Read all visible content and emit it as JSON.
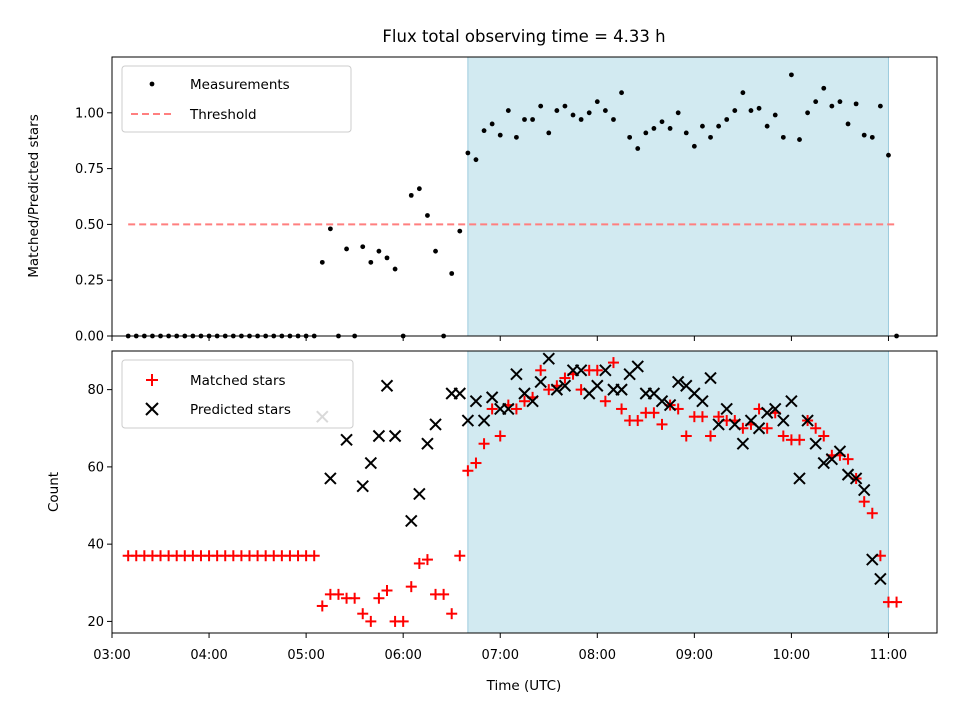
{
  "chart_data": [
    {
      "type": "scatter",
      "title": "Flux total observing time = 4.33 h",
      "xlabel": "",
      "ylabel": "Matched/Predicted stars",
      "xlim": [
        "03:00",
        "11:30"
      ],
      "ylim": [
        0,
        1.25
      ],
      "yticks": [
        "0.00",
        "0.25",
        "0.50",
        "0.75",
        "1.00"
      ],
      "shaded_region": {
        "start": "06:40",
        "end": "11:00",
        "color": "#add8e6"
      },
      "legend_position": "top-left",
      "series": [
        {
          "name": "Measurements",
          "marker": "dot",
          "color": "#000000",
          "x": [
            "03:10",
            "03:15",
            "03:20",
            "03:25",
            "03:30",
            "03:35",
            "03:40",
            "03:45",
            "03:50",
            "03:55",
            "04:00",
            "04:05",
            "04:10",
            "04:15",
            "04:20",
            "04:25",
            "04:30",
            "04:35",
            "04:40",
            "04:45",
            "04:50",
            "04:55",
            "05:00",
            "05:05",
            "05:10",
            "05:15",
            "05:20",
            "05:25",
            "05:30",
            "05:35",
            "05:40",
            "05:45",
            "05:50",
            "05:55",
            "06:00",
            "06:05",
            "06:10",
            "06:15",
            "06:20",
            "06:25",
            "06:30",
            "06:35",
            "06:40",
            "06:45",
            "06:50",
            "06:55",
            "07:00",
            "07:05",
            "07:10",
            "07:15",
            "07:20",
            "07:25",
            "07:30",
            "07:35",
            "07:40",
            "07:45",
            "07:50",
            "07:55",
            "08:00",
            "08:05",
            "08:10",
            "08:15",
            "08:20",
            "08:25",
            "08:30",
            "08:35",
            "08:40",
            "08:45",
            "08:50",
            "08:55",
            "09:00",
            "09:05",
            "09:10",
            "09:15",
            "09:20",
            "09:25",
            "09:30",
            "09:35",
            "09:40",
            "09:45",
            "09:50",
            "09:55",
            "10:00",
            "10:05",
            "10:10",
            "10:15",
            "10:20",
            "10:25",
            "10:30",
            "10:35",
            "10:40",
            "10:45",
            "10:50",
            "10:55",
            "11:00",
            "11:05"
          ],
          "values": [
            0,
            0,
            0,
            0,
            0,
            0,
            0,
            0,
            0,
            0,
            0,
            0,
            0,
            0,
            0,
            0,
            0,
            0,
            0,
            0,
            0,
            0,
            0,
            0,
            0.33,
            0.48,
            0,
            0.39,
            0,
            0.4,
            0.33,
            0.38,
            0.35,
            0.3,
            0,
            0.63,
            0.66,
            0.54,
            0.38,
            0,
            0.28,
            0.47,
            0.82,
            0.79,
            0.92,
            0.95,
            0.9,
            1.01,
            0.89,
            0.97,
            0.97,
            1.03,
            0.91,
            1.01,
            1.03,
            0.99,
            0.97,
            1.0,
            1.05,
            1.01,
            0.97,
            1.09,
            0.89,
            0.84,
            0.91,
            0.93,
            0.96,
            0.93,
            1.0,
            0.91,
            0.85,
            0.94,
            0.89,
            0.94,
            0.97,
            1.01,
            1.09,
            1.01,
            1.02,
            0.94,
            0.99,
            0.89,
            1.17,
            0.88,
            1.0,
            1.05,
            1.11,
            1.03,
            1.05,
            0.95,
            1.04,
            0.9,
            0.89,
            1.03,
            0.81,
            0
          ]
        },
        {
          "name": "Threshold",
          "style": "dashed",
          "color": "#ff7f7f",
          "x": [
            "03:10",
            "11:05"
          ],
          "values": [
            0.5,
            0.5
          ]
        }
      ]
    },
    {
      "type": "scatter",
      "title": "",
      "xlabel": "Time (UTC)",
      "ylabel": "Count",
      "xlim": [
        "03:00",
        "11:30"
      ],
      "ylim": [
        17,
        90
      ],
      "yticks": [
        "20",
        "40",
        "60",
        "80"
      ],
      "xticks": [
        "03:00",
        "04:00",
        "05:00",
        "06:00",
        "07:00",
        "08:00",
        "09:00",
        "10:00",
        "11:00"
      ],
      "shaded_region": {
        "start": "06:40",
        "end": "11:00",
        "color": "#add8e6"
      },
      "legend_position": "top-left",
      "series": [
        {
          "name": "Matched stars",
          "marker": "plus",
          "color": "#ff0000",
          "x": [
            "03:10",
            "03:15",
            "03:20",
            "03:25",
            "03:30",
            "03:35",
            "03:40",
            "03:45",
            "03:50",
            "03:55",
            "04:00",
            "04:05",
            "04:10",
            "04:15",
            "04:20",
            "04:25",
            "04:30",
            "04:35",
            "04:40",
            "04:45",
            "04:50",
            "04:55",
            "05:00",
            "05:05",
            "05:10",
            "05:15",
            "05:20",
            "05:25",
            "05:30",
            "05:35",
            "05:40",
            "05:45",
            "05:50",
            "05:55",
            "06:00",
            "06:05",
            "06:10",
            "06:15",
            "06:20",
            "06:25",
            "06:30",
            "06:35",
            "06:40",
            "06:45",
            "06:50",
            "06:55",
            "07:00",
            "07:05",
            "07:10",
            "07:15",
            "07:20",
            "07:25",
            "07:30",
            "07:35",
            "07:40",
            "07:45",
            "07:50",
            "07:55",
            "08:00",
            "08:05",
            "08:10",
            "08:15",
            "08:20",
            "08:25",
            "08:30",
            "08:35",
            "08:40",
            "08:45",
            "08:50",
            "08:55",
            "09:00",
            "09:05",
            "09:10",
            "09:15",
            "09:20",
            "09:25",
            "09:30",
            "09:35",
            "09:40",
            "09:45",
            "09:50",
            "09:55",
            "10:00",
            "10:05",
            "10:10",
            "10:15",
            "10:20",
            "10:25",
            "10:30",
            "10:35",
            "10:40",
            "10:45",
            "10:50",
            "10:55",
            "11:00",
            "11:05"
          ],
          "values": [
            37,
            37,
            37,
            37,
            37,
            37,
            37,
            37,
            37,
            37,
            37,
            37,
            37,
            37,
            37,
            37,
            37,
            37,
            37,
            37,
            37,
            37,
            37,
            37,
            24,
            27,
            27,
            26,
            26,
            22,
            20,
            26,
            28,
            20,
            20,
            29,
            35,
            36,
            27,
            27,
            22,
            37,
            59,
            61,
            66,
            75,
            68,
            76,
            75,
            77,
            78,
            85,
            80,
            81,
            83,
            84,
            80,
            85,
            85,
            77,
            87,
            75,
            72,
            72,
            74,
            74,
            71,
            76,
            75,
            68,
            73,
            73,
            68,
            73,
            72,
            72,
            70,
            71,
            75,
            70,
            74,
            68,
            67,
            67,
            72,
            70,
            68,
            63,
            63,
            62,
            57,
            51,
            48,
            37,
            25,
            25
          ]
        },
        {
          "name": "Predicted stars",
          "marker": "x",
          "color": "#000000",
          "x": [
            "05:10",
            "05:15",
            "05:25",
            "05:35",
            "05:40",
            "05:45",
            "05:50",
            "05:55",
            "06:05",
            "06:10",
            "06:15",
            "06:20",
            "06:30",
            "06:35",
            "06:40",
            "06:45",
            "06:50",
            "06:55",
            "07:00",
            "07:05",
            "07:10",
            "07:15",
            "07:20",
            "07:25",
            "07:30",
            "07:35",
            "07:40",
            "07:45",
            "07:50",
            "07:55",
            "08:00",
            "08:05",
            "08:10",
            "08:15",
            "08:20",
            "08:25",
            "08:30",
            "08:35",
            "08:40",
            "08:45",
            "08:50",
            "08:55",
            "09:00",
            "09:05",
            "09:10",
            "09:15",
            "09:20",
            "09:25",
            "09:30",
            "09:35",
            "09:40",
            "09:45",
            "09:50",
            "09:55",
            "10:00",
            "10:05",
            "10:10",
            "10:15",
            "10:20",
            "10:25",
            "10:30",
            "10:35",
            "10:40",
            "10:45",
            "10:50",
            "10:55",
            "11:00"
          ],
          "values": [
            73,
            57,
            67,
            55,
            61,
            68,
            81,
            68,
            46,
            53,
            66,
            71,
            79,
            79,
            72,
            77,
            72,
            78,
            75,
            75,
            84,
            79,
            77,
            82,
            88,
            80,
            81,
            85,
            85,
            79,
            81,
            85,
            80,
            80,
            84,
            86,
            79,
            79,
            77,
            76,
            82,
            81,
            79,
            77,
            83,
            71,
            75,
            71,
            66,
            72,
            70,
            74,
            75,
            72,
            77,
            57,
            72,
            66,
            61,
            62,
            64,
            58,
            57,
            54,
            36,
            31,
            null
          ]
        }
      ]
    }
  ]
}
